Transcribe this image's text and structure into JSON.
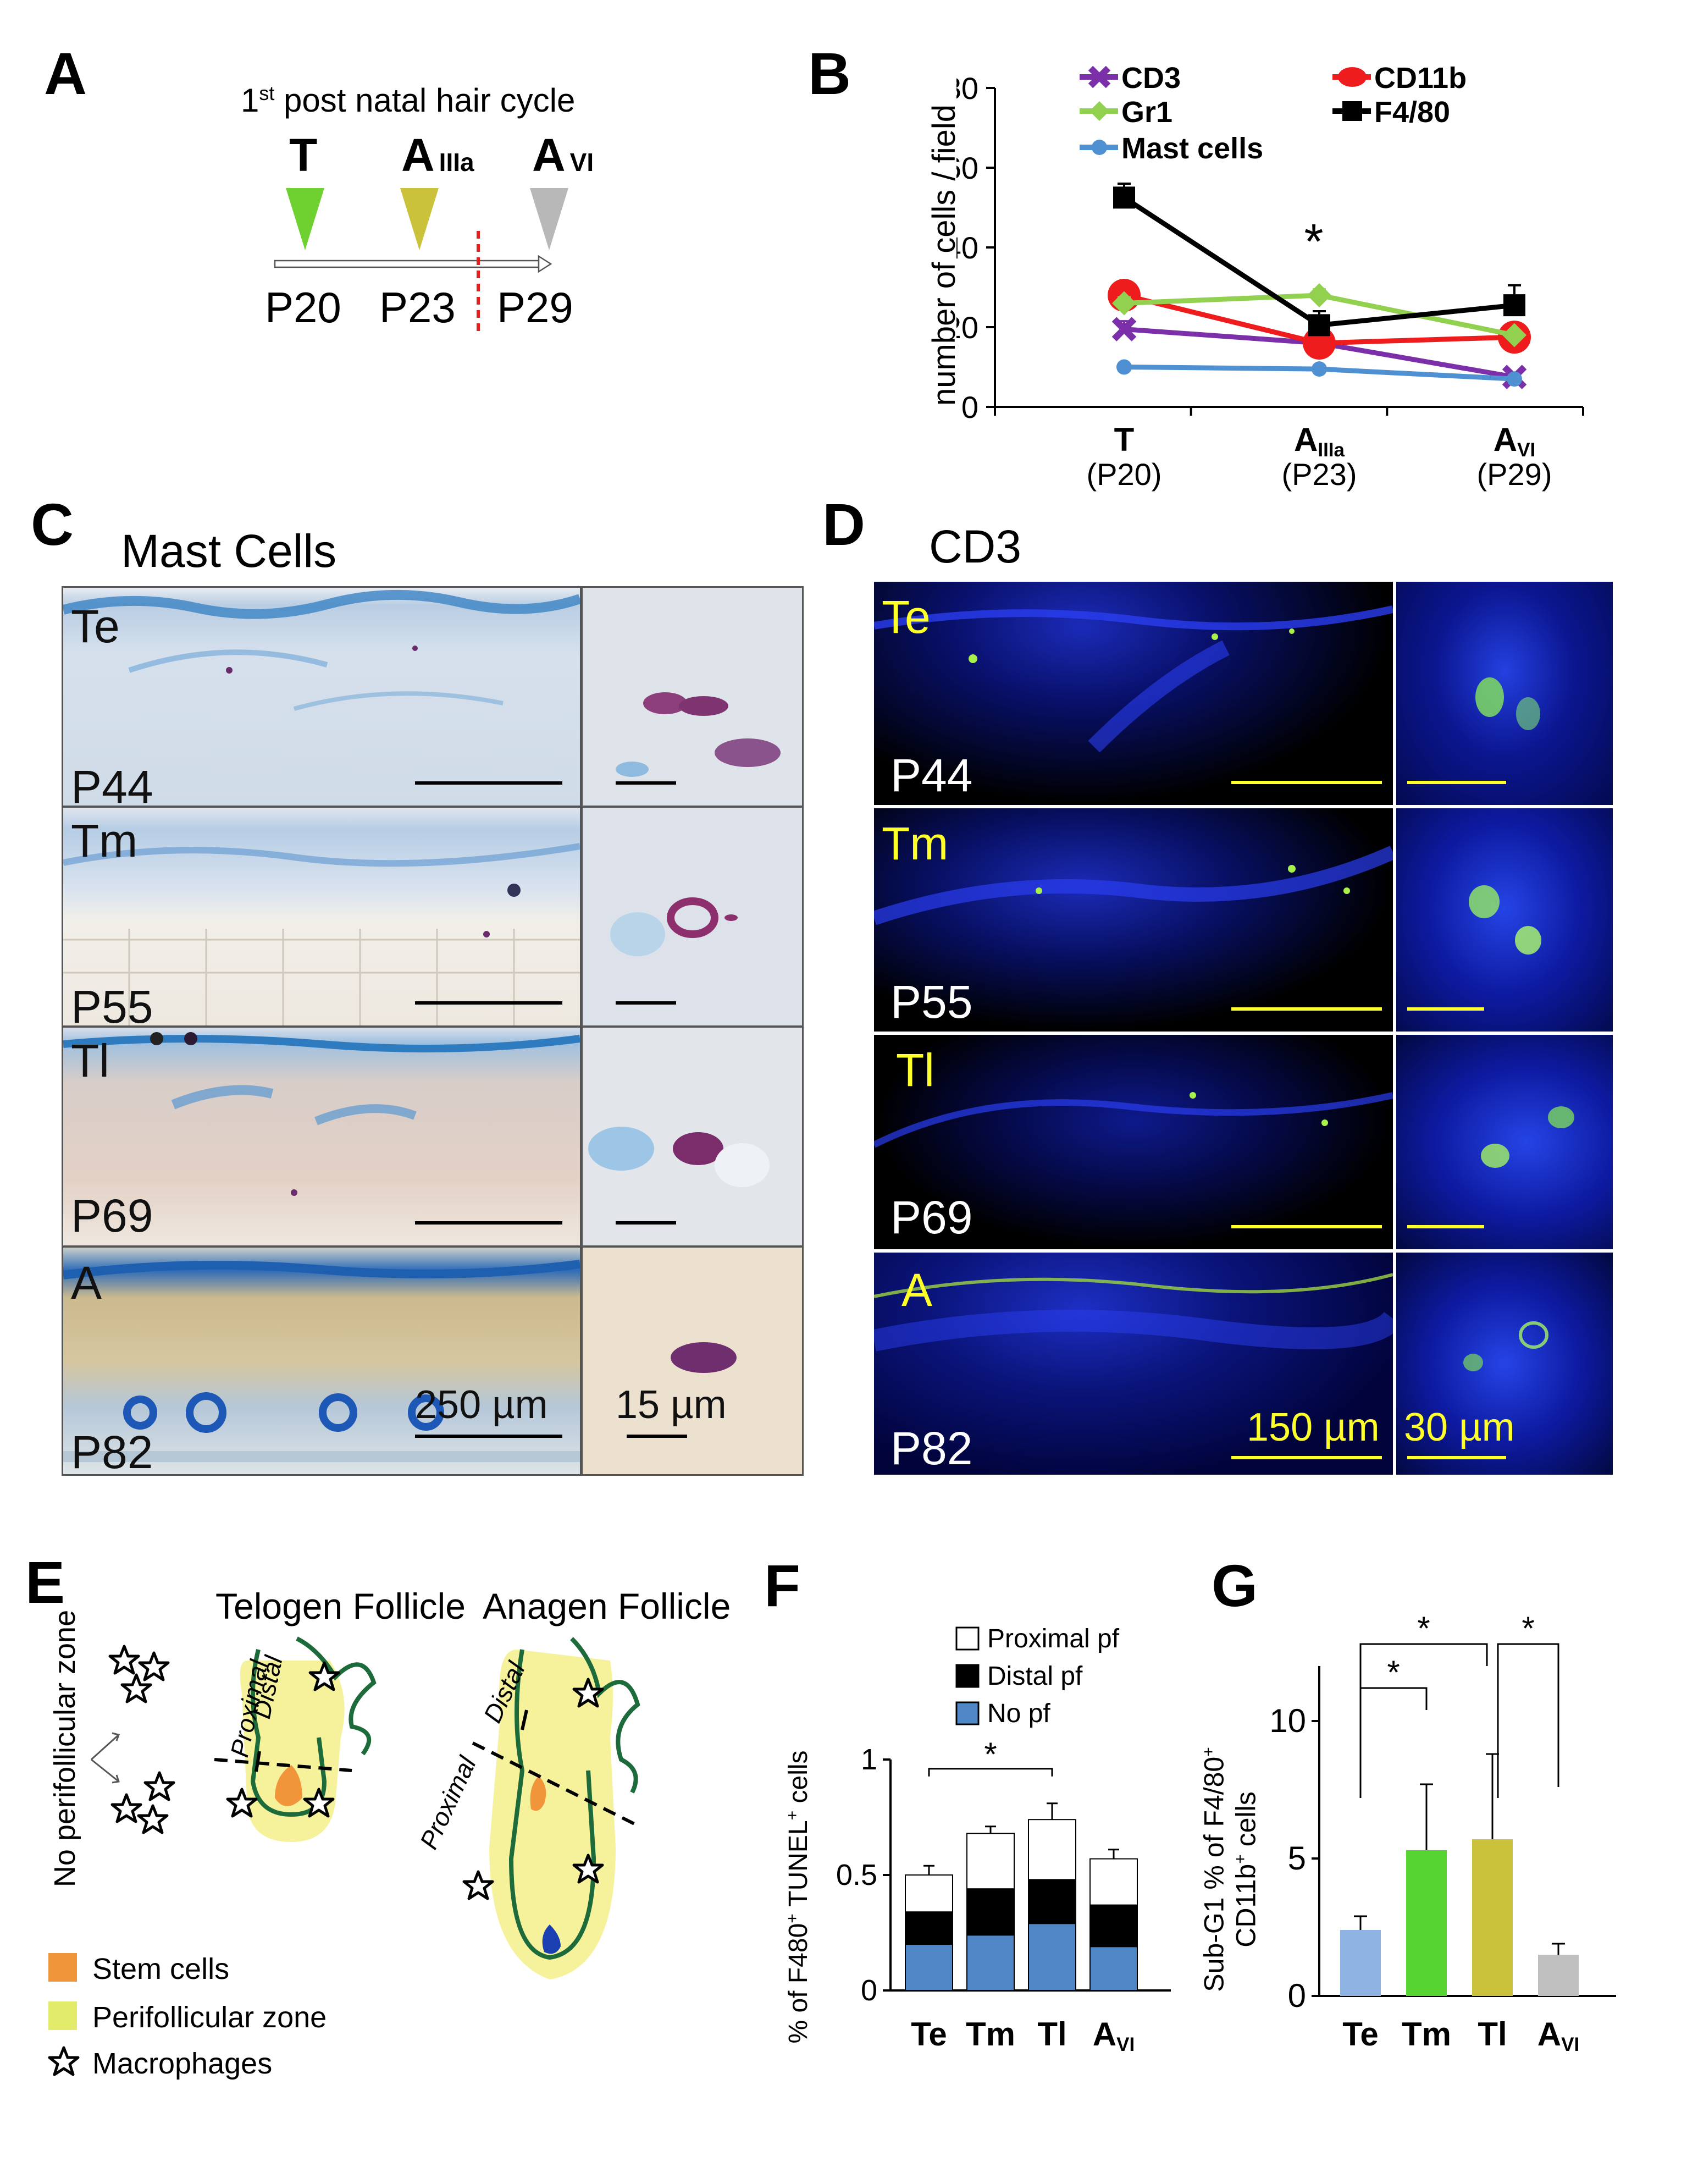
{
  "panels": {
    "a": "A",
    "b": "B",
    "c": "C",
    "d": "D",
    "e": "E",
    "f": "F",
    "g": "G"
  },
  "panel_a": {
    "title_pre": "1",
    "title_sup": "st",
    "title_post": " post natal hair cycle",
    "stages": [
      {
        "main": "T",
        "sub": "",
        "color": "#6fd12f"
      },
      {
        "main": "A",
        "sub": "IIIa",
        "color": "#c9c23a"
      },
      {
        "main": "A",
        "sub": "VI",
        "color": "#b8b8b8"
      }
    ],
    "days": [
      "P20",
      "P23",
      "P29"
    ],
    "divider_color": "#e0201e"
  },
  "chart_data": [
    {
      "id": "B",
      "type": "line",
      "title": "",
      "ylabel": "number of cells / field",
      "ylim": [
        0,
        80
      ],
      "yticks": [
        0,
        20,
        40,
        60,
        80
      ],
      "categories": [
        "T",
        "A",
        "A"
      ],
      "category_subs": [
        "",
        "IIIa",
        "VI"
      ],
      "category_days": [
        "(P20)",
        "(P23)",
        "(P29)"
      ],
      "series": [
        {
          "name": "CD3",
          "color": "#7b2fa8",
          "marker": "x",
          "values": [
            19.5,
            16,
            7.5
          ],
          "errors": [
            2,
            1.5,
            0.8
          ]
        },
        {
          "name": "CD11b",
          "color": "#ee1c1c",
          "marker": "circle",
          "values": [
            28,
            16,
            17.5
          ],
          "errors": [
            3,
            2,
            1.5
          ]
        },
        {
          "name": "Gr1",
          "color": "#92d050",
          "marker": "diamond",
          "values": [
            26,
            28,
            18
          ],
          "errors": [
            1.5,
            1.5,
            1.2
          ]
        },
        {
          "name": "F4/80",
          "color": "#000000",
          "marker": "square",
          "values": [
            52.5,
            20.5,
            25.5
          ],
          "errors": [
            3.5,
            3.5,
            5
          ]
        },
        {
          "name": "Mast cells",
          "color": "#4f90d2",
          "marker": "dot",
          "values": [
            10,
            9.5,
            7
          ],
          "errors": [
            0.5,
            0.5,
            0.5
          ]
        }
      ],
      "annotations": [
        {
          "text": "*",
          "category_index": 1
        }
      ],
      "legend": "top"
    },
    {
      "id": "F",
      "type": "bar",
      "ylabel": "% of F480",
      "ylabel_sup1": "+",
      "ylabel_mid": " TUNEL",
      "ylabel_sup2": "+",
      "ylabel_end": " cells",
      "categories": [
        "Te",
        "Tm",
        "Tl",
        "A"
      ],
      "category_subs": [
        "",
        "",
        "",
        "VI"
      ],
      "ylim": [
        0,
        1
      ],
      "yticks": [
        0,
        0.5,
        1
      ],
      "series": [
        {
          "name": "No pf",
          "color": "#4f86c6",
          "values": [
            0.2,
            0.24,
            0.29,
            0.19
          ],
          "errors": [
            0.04,
            0.04,
            0.05,
            0.03
          ]
        },
        {
          "name": "Distal pf",
          "color": "#000000",
          "values": [
            0.14,
            0.2,
            0.19,
            0.18
          ],
          "errors": [
            0.03,
            0.03,
            0.05,
            0.04
          ]
        },
        {
          "name": "Proximal pf",
          "color": "#ffffff",
          "values": [
            0.16,
            0.24,
            0.26,
            0.2
          ],
          "errors": [
            0.04,
            0.03,
            0.07,
            0.04
          ]
        }
      ],
      "legend_order": [
        "Proximal pf",
        "Distal pf",
        "No pf"
      ],
      "annotations": [
        {
          "text": "*",
          "from_index": 0,
          "to_index": 2
        }
      ]
    },
    {
      "id": "G",
      "type": "bar",
      "ylabel_line1_pre": "Sub-G1 % of F4/80",
      "ylabel_line1_sup": "+",
      "ylabel_line2_pre": "CD11b",
      "ylabel_line2_sup": "+",
      "ylabel_line2_post": " cells",
      "categories": [
        "Te",
        "Tm",
        "Tl",
        "A"
      ],
      "category_subs": [
        "",
        "",
        "",
        "VI"
      ],
      "ylim": [
        0,
        12
      ],
      "yticks": [
        0,
        5,
        10
      ],
      "values": [
        2.4,
        5.3,
        5.7,
        1.5
      ],
      "errors": [
        0.5,
        2.4,
        3.1,
        0.4
      ],
      "colors": [
        "#8fb4e3",
        "#56d431",
        "#c9c23a",
        "#c0c0c0"
      ],
      "annotations": [
        {
          "text": "*",
          "from_index": 0,
          "to_index": 1
        },
        {
          "text": "*",
          "from_index": 0,
          "to_index": 2
        },
        {
          "text": "*",
          "from_index": 2,
          "to_index": 3
        }
      ]
    }
  ],
  "panel_c": {
    "title": "Mast Cells",
    "rows": [
      {
        "stage": "Te",
        "day": "P44"
      },
      {
        "stage": "Tm",
        "day": "P55"
      },
      {
        "stage": "Tl",
        "day": "P69"
      },
      {
        "stage": "A",
        "day": "P82"
      }
    ],
    "scale_large": "250 µm",
    "scale_small": "15 µm"
  },
  "panel_d": {
    "title": "CD3",
    "rows": [
      {
        "stage": "Te",
        "day": "P44"
      },
      {
        "stage": "Tm",
        "day": "P55"
      },
      {
        "stage": "Tl",
        "day": "P69"
      },
      {
        "stage": "A",
        "day": "P82"
      }
    ],
    "scale_large": "150 µm",
    "scale_small": "30 µm",
    "label_color": "#ffff2a"
  },
  "panel_e": {
    "no_pf_label": "No perifollicular zone",
    "telogen_title": "Telogen Follicle",
    "anagen_title": "Anagen Follicle",
    "distal": "Distal",
    "proximal": "Proximal",
    "legend": [
      {
        "label": "Stem cells",
        "color": "#f0953a"
      },
      {
        "label": "Perifollicular zone",
        "color": "#e2ec6a"
      },
      {
        "label": "Macrophages",
        "icon": "star"
      }
    ]
  }
}
